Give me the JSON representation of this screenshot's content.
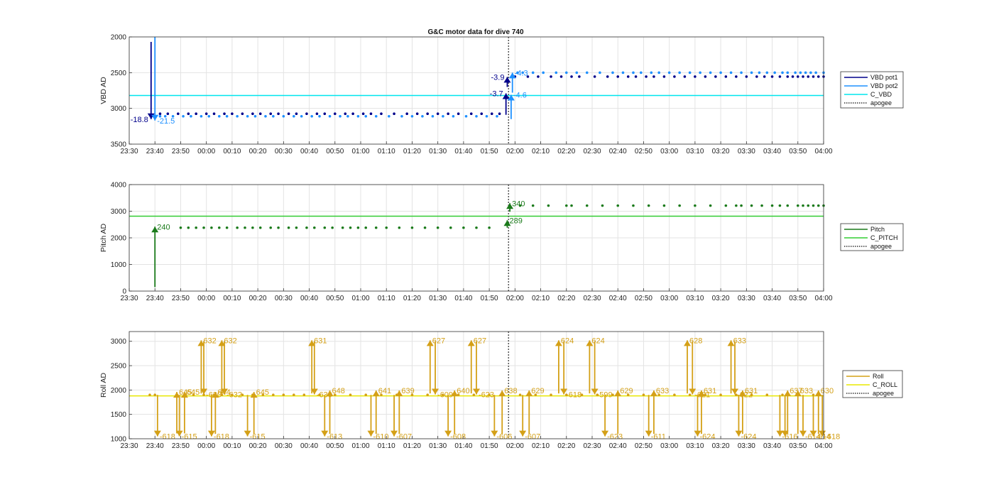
{
  "chart_data": {
    "title": "G&C motor data for dive 740",
    "x_tick_labels": [
      "23:30",
      "23:40",
      "23:50",
      "00:00",
      "00:10",
      "00:20",
      "00:30",
      "00:40",
      "00:50",
      "01:00",
      "01:10",
      "01:20",
      "01:30",
      "01:40",
      "01:50",
      "02:00",
      "02:10",
      "02:20",
      "02:30",
      "02:40",
      "02:50",
      "03:00",
      "03:10",
      "03:20",
      "03:30",
      "03:40",
      "03:50",
      "04:00"
    ],
    "apogee_minute": 147.5,
    "panels": [
      {
        "id": "vbd",
        "type": "scatter",
        "ylabel": "VBD AD",
        "ylim": [
          3500,
          2000
        ],
        "yticks": [
          2000,
          2500,
          3000,
          3500
        ],
        "y_reversed": true,
        "legend": [
          {
            "label": "VBD pot1",
            "color": "#00008b",
            "style": "solid"
          },
          {
            "label": "VBD pot2",
            "color": "#1e90ff",
            "style": "solid"
          },
          {
            "label": "C_VBD",
            "color": "#00e5ee",
            "style": "solid"
          },
          {
            "label": "apogee",
            "color": "#333333",
            "style": "dotted"
          }
        ],
        "hlines": [
          {
            "y": 2820,
            "color": "#00e5ee"
          }
        ],
        "series": [
          {
            "name": "VBD pot1",
            "color": "#00008b",
            "y_before": 3075,
            "y_after": 2555,
            "x_before": [
              12,
              15,
              19,
              23,
              26,
              30,
              33,
              37,
              40,
              44,
              48,
              51,
              55,
              58,
              62,
              65,
              69,
              73,
              76,
              80,
              84,
              87,
              91,
              94,
              98,
              103,
              108,
              112,
              116,
              120,
              124,
              128,
              133,
              137,
              141,
              144
            ],
            "x_after": [
              150,
              155,
              159,
              164,
              168,
              172,
              175,
              181,
              186,
              190,
              194,
              197,
              201,
              204,
              208,
              212,
              216,
              220,
              224,
              228,
              232,
              236,
              240,
              244,
              247,
              250,
              253,
              256,
              258,
              260,
              262,
              264,
              266,
              268,
              270
            ]
          },
          {
            "name": "VBD pot2",
            "color": "#1e90ff",
            "y_before": 3110,
            "y_after": 2500,
            "x_before": [
              12,
              14,
              17,
              21,
              24,
              28,
              31,
              35,
              38,
              42,
              46,
              49,
              53,
              56,
              60,
              64,
              67,
              71,
              74,
              78,
              82,
              85,
              89,
              92,
              96,
              101,
              106,
              110,
              114,
              118,
              122,
              126,
              131,
              135,
              139,
              143
            ],
            "x_after": [
              151,
              153,
              157,
              161,
              166,
              170,
              174,
              178,
              183,
              188,
              192,
              196,
              199,
              203,
              206,
              210,
              214,
              218,
              222,
              226,
              230,
              234,
              238,
              242,
              245,
              248,
              251,
              254,
              256,
              259,
              261,
              263,
              265,
              267,
              270
            ]
          }
        ],
        "arrows": [
          {
            "x": 8.5,
            "y1": 2070,
            "y2": 3150,
            "color": "#00008b",
            "label": "-18.8",
            "label_side": "left"
          },
          {
            "x": 10,
            "y1": 2000,
            "y2": 3170,
            "color": "#1e90ff",
            "label": "-21.5",
            "label_side": "right"
          },
          {
            "x": 146.5,
            "y1": 3090,
            "y2": 2790,
            "color": "#00008b",
            "label": "-3.7",
            "label_side": "left"
          },
          {
            "x": 147,
            "y1": 2700,
            "y2": 2560,
            "color": "#00008b",
            "label": "-3.9",
            "label_side": "left"
          },
          {
            "x": 148.5,
            "y1": 3150,
            "y2": 2810,
            "color": "#1e90ff",
            "label": "-4.6",
            "label_side": "right"
          },
          {
            "x": 149,
            "y1": 2780,
            "y2": 2500,
            "color": "#1e90ff",
            "label": "-4.3",
            "label_side": "right"
          }
        ]
      },
      {
        "id": "pitch",
        "type": "scatter",
        "ylabel": "Pitch AD",
        "ylim": [
          0,
          4000
        ],
        "yticks": [
          0,
          1000,
          2000,
          3000,
          4000
        ],
        "y_reversed": false,
        "legend": [
          {
            "label": "Pitch",
            "color": "#1a7a1a",
            "style": "solid"
          },
          {
            "label": "C_PITCH",
            "color": "#32cd32",
            "style": "solid"
          },
          {
            "label": "apogee",
            "color": "#333333",
            "style": "dotted"
          }
        ],
        "hlines": [
          {
            "y": 2815,
            "color": "#32cd32"
          }
        ],
        "series": [
          {
            "name": "Pitch",
            "color": "#1a7a1a",
            "y_before": 2380,
            "y_after": 3210,
            "x_before": [
              20,
              23,
              26,
              29,
              32,
              35,
              38,
              42,
              45,
              48,
              51,
              55,
              58,
              62,
              65,
              69,
              72,
              76,
              79,
              83,
              86,
              89,
              92,
              96,
              100,
              105,
              110,
              115,
              120,
              125,
              130,
              135,
              140
            ],
            "x_after": [
              152,
              157,
              163,
              170,
              172,
              178,
              184,
              190,
              196,
              202,
              208,
              214,
              220,
              226,
              232,
              236,
              238,
              242,
              246,
              250,
              253,
              256,
              260,
              262,
              264,
              266,
              268,
              270
            ]
          }
        ],
        "arrows": [
          {
            "x": 10,
            "y1": 150,
            "y2": 2420,
            "color": "#1a7a1a",
            "label": "240",
            "label_side": "right"
          },
          {
            "x": 147,
            "y1": 2380,
            "y2": 2660,
            "color": "#1a7a1a",
            "label": "289",
            "label_side": "right"
          },
          {
            "x": 148,
            "y1": 2980,
            "y2": 3300,
            "color": "#1a7a1a",
            "label": "340",
            "label_side": "right"
          }
        ]
      },
      {
        "id": "roll",
        "type": "scatter",
        "ylabel": "Roll AD",
        "ylim": [
          1000,
          3200
        ],
        "yticks": [
          1000,
          1500,
          2000,
          2500,
          3000
        ],
        "y_reversed": false,
        "legend": [
          {
            "label": "Roll",
            "color": "#d4a017",
            "style": "solid"
          },
          {
            "label": "C_ROLL",
            "color": "#e8e800",
            "style": "solid"
          },
          {
            "label": "apogee",
            "color": "#333333",
            "style": "dotted"
          }
        ],
        "hlines": [
          {
            "y": 1880,
            "color": "#e8e800"
          }
        ],
        "series": [
          {
            "name": "Roll",
            "color": "#d4a017",
            "y_before": 1900,
            "y_after": 1900,
            "x_before": [
              8,
              10,
              22,
              25,
              29,
              33,
              36,
              40,
              44,
              48,
              52,
              56,
              60,
              64,
              68,
              74,
              80,
              86,
              92,
              98,
              104,
              110,
              116,
              122,
              128,
              134,
              140
            ],
            "x_after": [
              152,
              158,
              164,
              170,
              176,
              182,
              188,
              194,
              200,
              206,
              212,
              218,
              224,
              230,
              236,
              242,
              248,
              254,
              260,
              266
            ]
          }
        ],
        "arrows": [
          {
            "x": 11,
            "y1": 1900,
            "y2": 1050,
            "label": "-618",
            "label_side": "right"
          },
          {
            "x": 19.5,
            "y1": 1900,
            "y2": 1050,
            "label": "-615",
            "label_side": "right"
          },
          {
            "x": 18.5,
            "y1": 1110,
            "y2": 1960,
            "label": "645",
            "label_side": "right"
          },
          {
            "x": 21.5,
            "y1": 1110,
            "y2": 1960,
            "label": "645",
            "label_side": "right"
          },
          {
            "x": 28,
            "y1": 1930,
            "y2": 3020,
            "label": "632",
            "label_side": "right"
          },
          {
            "x": 29,
            "y1": 3000,
            "y2": 1910,
            "label": "-630",
            "label_side": "right"
          },
          {
            "x": 32,
            "y1": 1900,
            "y2": 1050,
            "label": "-618",
            "label_side": "right"
          },
          {
            "x": 33.5,
            "y1": 1100,
            "y2": 1960,
            "label": "644",
            "label_side": "right"
          },
          {
            "x": 36,
            "y1": 1930,
            "y2": 3020,
            "label": "632",
            "label_side": "right"
          },
          {
            "x": 37,
            "y1": 3000,
            "y2": 1910,
            "label": "-632",
            "label_side": "right"
          },
          {
            "x": 46,
            "y1": 1900,
            "y2": 1050,
            "label": "-615",
            "label_side": "right"
          },
          {
            "x": 48.5,
            "y1": 1100,
            "y2": 1960,
            "label": "645",
            "label_side": "right"
          },
          {
            "x": 71,
            "y1": 1930,
            "y2": 3020,
            "label": "631",
            "label_side": "right"
          },
          {
            "x": 72,
            "y1": 3000,
            "y2": 1910,
            "label": "-630",
            "label_side": "right"
          },
          {
            "x": 76,
            "y1": 1900,
            "y2": 1050,
            "label": "-613",
            "label_side": "right"
          },
          {
            "x": 78,
            "y1": 1100,
            "y2": 1990,
            "label": "648",
            "label_side": "right"
          },
          {
            "x": 94,
            "y1": 1900,
            "y2": 1050,
            "label": "-610",
            "label_side": "right"
          },
          {
            "x": 96,
            "y1": 1100,
            "y2": 1990,
            "label": "641",
            "label_side": "right"
          },
          {
            "x": 103,
            "y1": 1900,
            "y2": 1050,
            "label": "-607",
            "label_side": "right"
          },
          {
            "x": 105,
            "y1": 1100,
            "y2": 1990,
            "label": "639",
            "label_side": "right"
          },
          {
            "x": 117,
            "y1": 1930,
            "y2": 3020,
            "label": "627",
            "label_side": "right"
          },
          {
            "x": 119,
            "y1": 3000,
            "y2": 1910,
            "label": "-609",
            "label_side": "right"
          },
          {
            "x": 124,
            "y1": 1900,
            "y2": 1050,
            "label": "-608",
            "label_side": "right"
          },
          {
            "x": 126.5,
            "y1": 1100,
            "y2": 1990,
            "label": "640",
            "label_side": "right"
          },
          {
            "x": 133,
            "y1": 1930,
            "y2": 3020,
            "label": "627",
            "label_side": "right"
          },
          {
            "x": 135,
            "y1": 3000,
            "y2": 1910,
            "label": "-623",
            "label_side": "right"
          },
          {
            "x": 142,
            "y1": 1900,
            "y2": 1050,
            "label": "-606",
            "label_side": "right"
          },
          {
            "x": 145,
            "y1": 1100,
            "y2": 1990,
            "label": "638",
            "label_side": "right"
          },
          {
            "x": 153,
            "y1": 1900,
            "y2": 1050,
            "label": "-607",
            "label_side": "right"
          },
          {
            "x": 155.5,
            "y1": 1100,
            "y2": 1990,
            "label": "629",
            "label_side": "right"
          },
          {
            "x": 167,
            "y1": 1930,
            "y2": 3020,
            "label": "624",
            "label_side": "right"
          },
          {
            "x": 169,
            "y1": 3000,
            "y2": 1910,
            "label": "-618",
            "label_side": "right"
          },
          {
            "x": 179,
            "y1": 1930,
            "y2": 3020,
            "label": "624",
            "label_side": "right"
          },
          {
            "x": 181,
            "y1": 3000,
            "y2": 1910,
            "label": "-599",
            "label_side": "right"
          },
          {
            "x": 185,
            "y1": 1900,
            "y2": 1050,
            "label": "-623",
            "label_side": "right"
          },
          {
            "x": 190,
            "y1": 1100,
            "y2": 1990,
            "label": "629",
            "label_side": "right"
          },
          {
            "x": 202,
            "y1": 1900,
            "y2": 1050,
            "label": "-611",
            "label_side": "right"
          },
          {
            "x": 204,
            "y1": 1100,
            "y2": 1990,
            "label": "633",
            "label_side": "right"
          },
          {
            "x": 217,
            "y1": 1930,
            "y2": 3020,
            "label": "628",
            "label_side": "right"
          },
          {
            "x": 219,
            "y1": 3000,
            "y2": 1910,
            "label": "-621",
            "label_side": "right"
          },
          {
            "x": 221,
            "y1": 1900,
            "y2": 1050,
            "label": "-624",
            "label_side": "right"
          },
          {
            "x": 222.5,
            "y1": 1100,
            "y2": 1990,
            "label": "631",
            "label_side": "right"
          },
          {
            "x": 234,
            "y1": 1930,
            "y2": 3020,
            "label": "633",
            "label_side": "right"
          },
          {
            "x": 235.5,
            "y1": 3000,
            "y2": 1910,
            "label": "-622",
            "label_side": "right"
          },
          {
            "x": 237,
            "y1": 1900,
            "y2": 1050,
            "label": "-624",
            "label_side": "right"
          },
          {
            "x": 238.5,
            "y1": 1100,
            "y2": 1990,
            "label": "631",
            "label_side": "right"
          },
          {
            "x": 253,
            "y1": 1900,
            "y2": 1050,
            "label": "-616",
            "label_side": "right"
          },
          {
            "x": 256,
            "y1": 1100,
            "y2": 1990,
            "label": "637",
            "label_side": "right"
          },
          {
            "x": 255,
            "y1": 1900,
            "y2": 1050,
            "label": "",
            "label_side": "right"
          },
          {
            "x": 260,
            "y1": 1100,
            "y2": 1990,
            "label": "633",
            "label_side": "right"
          },
          {
            "x": 262,
            "y1": 1900,
            "y2": 1050,
            "label": "-614",
            "label_side": "right"
          },
          {
            "x": 266,
            "y1": 1900,
            "y2": 1050,
            "label": "-614",
            "label_side": "right"
          },
          {
            "x": 268,
            "y1": 1100,
            "y2": 1990,
            "label": "630",
            "label_side": "right"
          },
          {
            "x": 269.5,
            "y1": 1900,
            "y2": 1050,
            "label": "-618",
            "label_side": "right"
          }
        ]
      }
    ]
  }
}
